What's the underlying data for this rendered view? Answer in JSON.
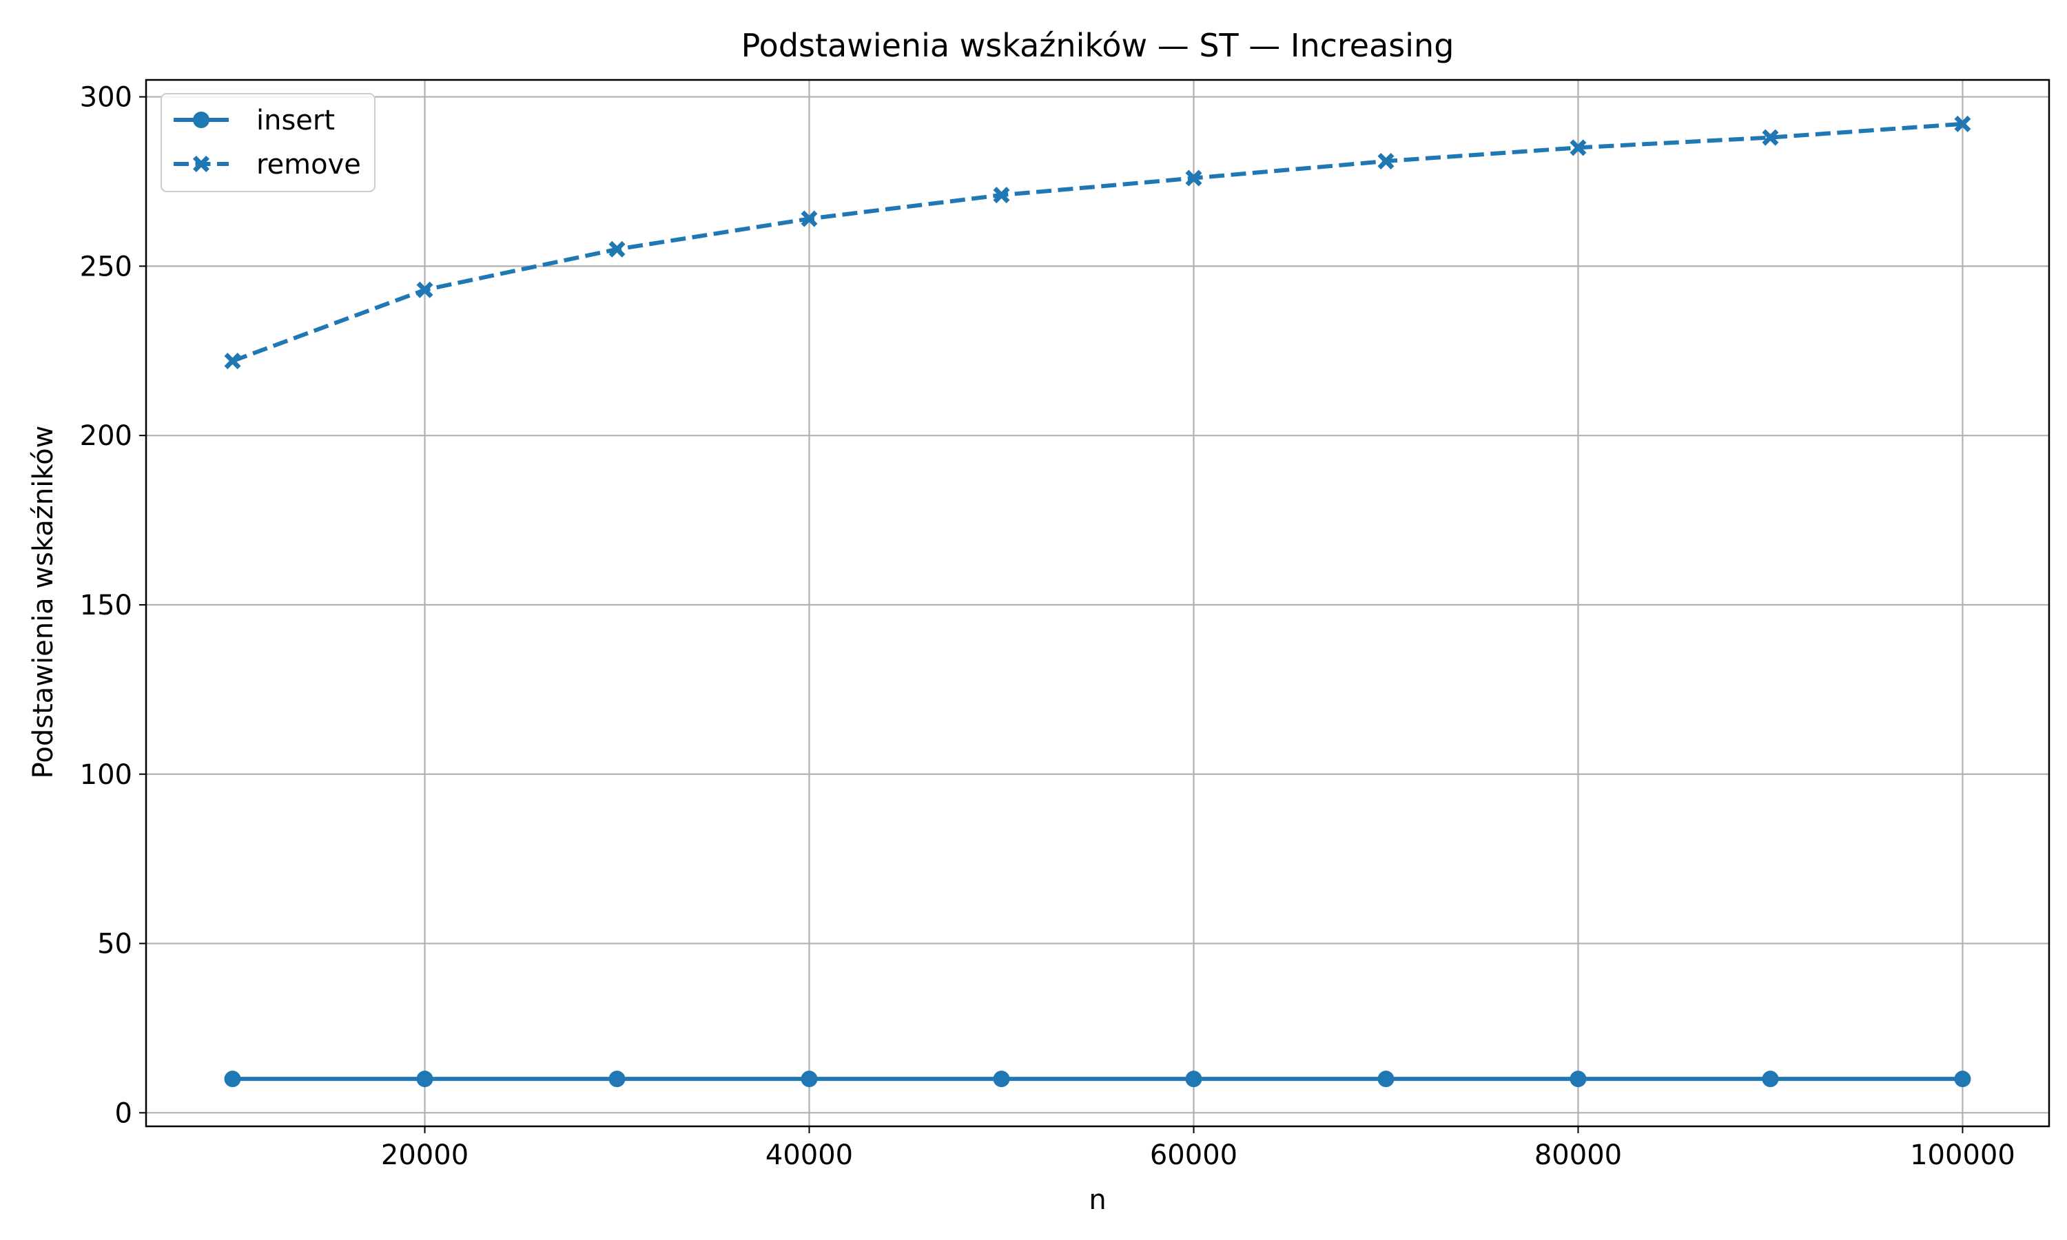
{
  "chart_data": {
    "type": "line",
    "title": "Podstawienia wskaźników — ST — Increasing",
    "xlabel": "n",
    "ylabel": "Podstawienia wskaźników",
    "x": [
      10000,
      20000,
      30000,
      40000,
      50000,
      60000,
      70000,
      80000,
      90000,
      100000
    ],
    "xlim": [
      5500,
      104500
    ],
    "ylim": [
      -4,
      305
    ],
    "xticks": [
      20000,
      40000,
      60000,
      80000,
      100000
    ],
    "xtick_labels": [
      "20000",
      "40000",
      "60000",
      "80000",
      "100000"
    ],
    "yticks": [
      0,
      50,
      100,
      150,
      200,
      250,
      300
    ],
    "ytick_labels": [
      "0",
      "50",
      "100",
      "150",
      "200",
      "250",
      "300"
    ],
    "grid": true,
    "legend_position": "upper-left",
    "series": [
      {
        "name": "insert",
        "values": [
          10,
          10,
          10,
          10,
          10,
          10,
          10,
          10,
          10,
          10
        ],
        "color": "#1f77b4",
        "line_style": "solid",
        "marker": "circle"
      },
      {
        "name": "remove",
        "values": [
          222,
          243,
          255,
          264,
          271,
          276,
          281,
          285,
          288,
          292
        ],
        "color": "#1f77b4",
        "line_style": "dashed",
        "marker": "x-filled"
      }
    ]
  }
}
